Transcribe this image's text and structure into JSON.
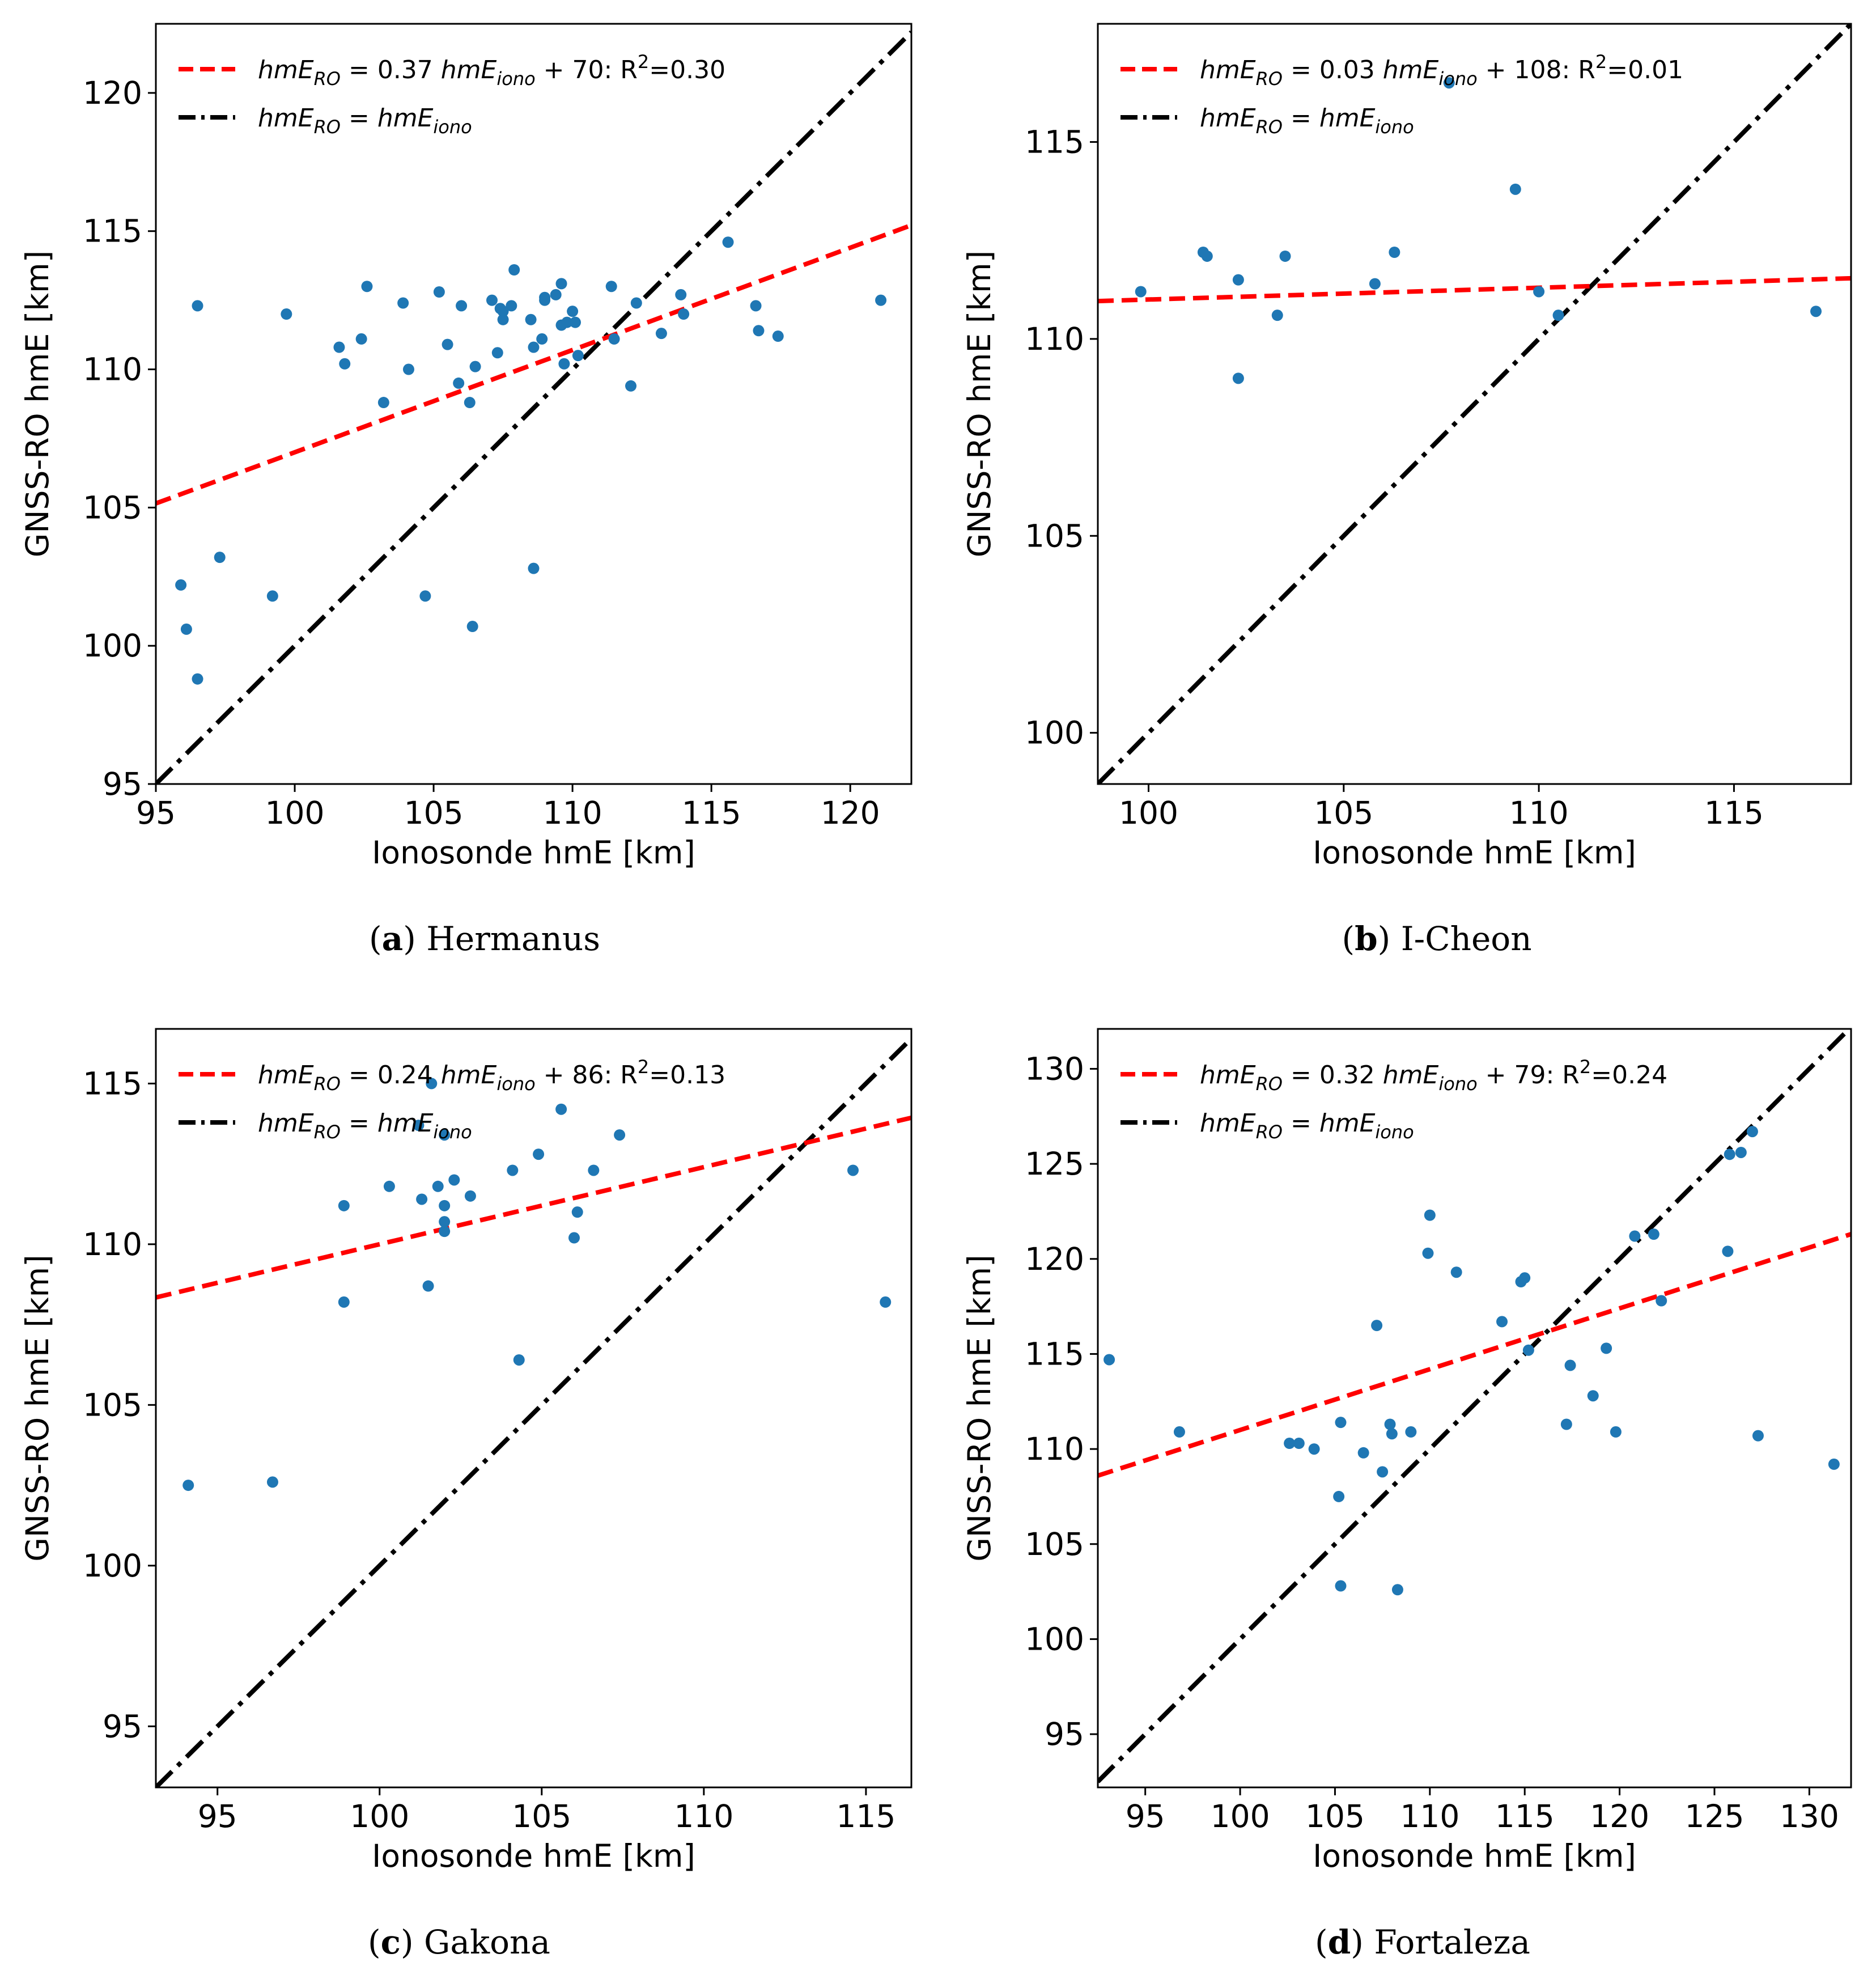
{
  "colors": {
    "fit": "#ff0000",
    "identity": "#000000",
    "points": "#1f77b4"
  },
  "chart_data": [
    {
      "type": "scatter",
      "panel_letter": "a",
      "station": "Hermanus",
      "xlabel": "Ionosonde hmE [km]",
      "ylabel": "GNSS-RO hmE [km]",
      "xlim": [
        95,
        122.2
      ],
      "ylim": [
        95,
        122.5
      ],
      "xticks": [
        95,
        100,
        105,
        110,
        115,
        120
      ],
      "yticks": [
        95,
        100,
        105,
        110,
        115,
        120
      ],
      "fit": {
        "slope": 0.37,
        "intercept": 70,
        "slope_text": "0.37",
        "intercept_text": "70",
        "r2_text": "0.30"
      },
      "identity_label": "hmE_RO = hmE_iono",
      "points": [
        [
          95.9,
          102.2
        ],
        [
          96.1,
          100.6
        ],
        [
          96.5,
          112.3
        ],
        [
          96.5,
          98.8
        ],
        [
          97.3,
          103.2
        ],
        [
          99.2,
          101.8
        ],
        [
          99.7,
          112.0
        ],
        [
          101.6,
          110.8
        ],
        [
          101.8,
          110.2
        ],
        [
          102.4,
          111.1
        ],
        [
          102.6,
          113.0
        ],
        [
          103.2,
          108.8
        ],
        [
          103.9,
          112.4
        ],
        [
          104.1,
          110.0
        ],
        [
          104.7,
          101.8
        ],
        [
          105.2,
          112.8
        ],
        [
          105.5,
          110.9
        ],
        [
          105.9,
          109.5
        ],
        [
          106.0,
          112.3
        ],
        [
          106.3,
          108.8
        ],
        [
          106.4,
          100.7
        ],
        [
          106.5,
          110.1
        ],
        [
          107.1,
          112.5
        ],
        [
          107.3,
          110.6
        ],
        [
          107.4,
          112.2
        ],
        [
          107.5,
          111.8
        ],
        [
          107.5,
          112.1
        ],
        [
          107.8,
          112.3
        ],
        [
          107.9,
          113.6
        ],
        [
          108.5,
          111.8
        ],
        [
          108.6,
          110.8
        ],
        [
          108.6,
          102.8
        ],
        [
          108.9,
          111.1
        ],
        [
          109.0,
          112.5
        ],
        [
          109.0,
          112.6
        ],
        [
          109.4,
          112.7
        ],
        [
          109.6,
          111.6
        ],
        [
          109.6,
          113.1
        ],
        [
          109.7,
          110.2
        ],
        [
          109.8,
          111.7
        ],
        [
          110.0,
          112.1
        ],
        [
          110.1,
          111.7
        ],
        [
          110.2,
          110.5
        ],
        [
          111.4,
          113.0
        ],
        [
          111.5,
          111.1
        ],
        [
          112.1,
          109.4
        ],
        [
          112.3,
          112.4
        ],
        [
          113.2,
          111.3
        ],
        [
          113.9,
          112.7
        ],
        [
          114.0,
          112.0
        ],
        [
          115.6,
          114.6
        ],
        [
          116.6,
          112.3
        ],
        [
          116.7,
          111.4
        ],
        [
          117.4,
          111.2
        ],
        [
          121.1,
          112.5
        ]
      ]
    },
    {
      "type": "scatter",
      "panel_letter": "b",
      "station": "I-Cheon",
      "xlabel": "Ionosonde hmE [km]",
      "ylabel": "GNSS-RO hmE [km]",
      "xlim": [
        98.7,
        118.0
      ],
      "ylim": [
        98.7,
        118.0
      ],
      "xticks": [
        100,
        105,
        110,
        115
      ],
      "yticks": [
        100,
        105,
        110,
        115
      ],
      "fit": {
        "slope": 0.03,
        "intercept": 108,
        "slope_text": "0.03",
        "intercept_text": "108",
        "r2_text": "0.01"
      },
      "identity_label": "hmE_RO = hmE_iono",
      "points": [
        [
          99.8,
          111.2
        ],
        [
          101.4,
          112.2
        ],
        [
          101.5,
          112.1
        ],
        [
          102.3,
          111.5
        ],
        [
          102.3,
          109.0
        ],
        [
          103.3,
          110.6
        ],
        [
          103.5,
          112.1
        ],
        [
          105.8,
          111.4
        ],
        [
          106.3,
          112.2
        ],
        [
          107.7,
          116.5
        ],
        [
          109.4,
          113.8
        ],
        [
          110.0,
          111.2
        ],
        [
          110.5,
          110.6
        ],
        [
          117.1,
          110.7
        ]
      ]
    },
    {
      "type": "scatter",
      "panel_letter": "c",
      "station": "Gakona",
      "xlabel": "Ionosonde hmE [km]",
      "ylabel": "GNSS-RO hmE [km]",
      "xlim": [
        93.1,
        116.4
      ],
      "ylim": [
        93.1,
        116.7
      ],
      "xticks": [
        95,
        100,
        105,
        110,
        115
      ],
      "yticks": [
        95,
        100,
        105,
        110,
        115
      ],
      "fit": {
        "slope": 0.24,
        "intercept": 86,
        "slope_text": "0.24",
        "intercept_text": "86",
        "r2_text": "0.13"
      },
      "identity_label": "hmE_RO = hmE_iono",
      "points": [
        [
          94.1,
          102.5
        ],
        [
          96.7,
          102.6
        ],
        [
          98.9,
          111.2
        ],
        [
          98.9,
          108.2
        ],
        [
          100.3,
          111.8
        ],
        [
          101.2,
          113.7
        ],
        [
          101.3,
          111.4
        ],
        [
          101.5,
          108.7
        ],
        [
          101.6,
          115.0
        ],
        [
          101.8,
          111.8
        ],
        [
          102.0,
          110.4
        ],
        [
          102.0,
          111.2
        ],
        [
          102.0,
          110.7
        ],
        [
          102.0,
          113.4
        ],
        [
          102.3,
          112.0
        ],
        [
          102.8,
          111.5
        ],
        [
          104.1,
          112.3
        ],
        [
          104.3,
          106.4
        ],
        [
          104.9,
          112.8
        ],
        [
          105.6,
          114.2
        ],
        [
          106.0,
          110.2
        ],
        [
          106.1,
          111.0
        ],
        [
          106.6,
          112.3
        ],
        [
          107.4,
          113.4
        ],
        [
          114.6,
          112.3
        ],
        [
          115.6,
          108.2
        ]
      ]
    },
    {
      "type": "scatter",
      "panel_letter": "d",
      "station": "Fortaleza",
      "xlabel": "Ionosonde hmE [km]",
      "ylabel": "GNSS-RO hmE [km]",
      "xlim": [
        92.5,
        132.2
      ],
      "ylim": [
        92.2,
        132.1
      ],
      "xticks": [
        95,
        100,
        105,
        110,
        115,
        120,
        125,
        130
      ],
      "yticks": [
        95,
        100,
        105,
        110,
        115,
        120,
        125,
        130
      ],
      "fit": {
        "slope": 0.32,
        "intercept": 79,
        "slope_text": "0.32",
        "intercept_text": "79",
        "r2_text": "0.24"
      },
      "identity_label": "hmE_RO = hmE_iono",
      "points": [
        [
          93.1,
          114.7
        ],
        [
          96.8,
          110.9
        ],
        [
          102.6,
          110.3
        ],
        [
          103.1,
          110.3
        ],
        [
          103.9,
          110.0
        ],
        [
          105.2,
          107.5
        ],
        [
          105.3,
          111.4
        ],
        [
          105.3,
          102.8
        ],
        [
          106.5,
          109.8
        ],
        [
          107.2,
          116.5
        ],
        [
          107.5,
          108.8
        ],
        [
          107.9,
          111.3
        ],
        [
          108.0,
          110.8
        ],
        [
          108.3,
          102.6
        ],
        [
          109.0,
          110.9
        ],
        [
          109.9,
          120.3
        ],
        [
          110.0,
          122.3
        ],
        [
          111.4,
          119.3
        ],
        [
          113.8,
          116.7
        ],
        [
          114.8,
          118.8
        ],
        [
          115.0,
          119.0
        ],
        [
          115.2,
          115.2
        ],
        [
          117.2,
          111.3
        ],
        [
          117.4,
          114.4
        ],
        [
          118.6,
          112.8
        ],
        [
          119.3,
          115.3
        ],
        [
          119.8,
          110.9
        ],
        [
          120.8,
          121.2
        ],
        [
          121.8,
          121.3
        ],
        [
          122.2,
          117.8
        ],
        [
          125.7,
          120.4
        ],
        [
          125.8,
          125.5
        ],
        [
          126.4,
          125.6
        ],
        [
          127.0,
          126.7
        ],
        [
          127.3,
          110.7
        ],
        [
          131.3,
          109.2
        ]
      ]
    }
  ]
}
